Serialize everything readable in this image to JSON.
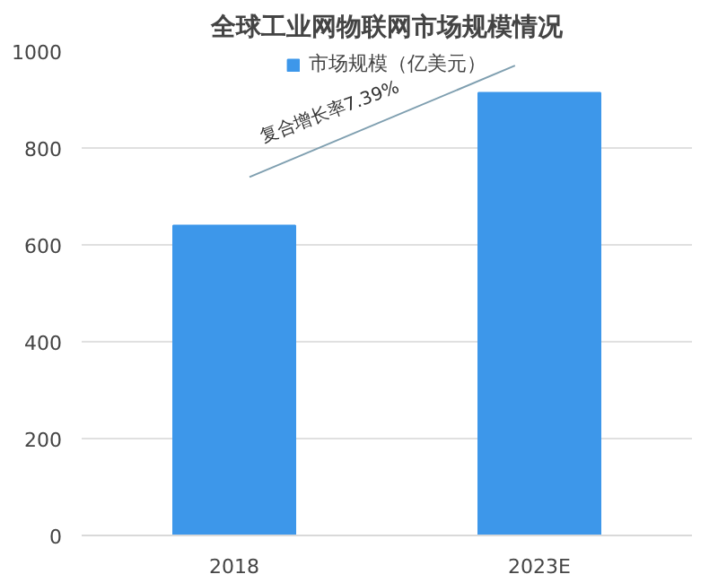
{
  "chart_data": {
    "type": "bar",
    "title": "全球工业网物联网市场规模情况",
    "categories": [
      "2018",
      "2023E"
    ],
    "series": [
      {
        "name": "市场规模（亿美元）",
        "color": "#3d97ea",
        "values": [
          640,
          914
        ]
      }
    ],
    "ylim": [
      0,
      1000
    ],
    "yticks": [
      0,
      200,
      400,
      600,
      800,
      1000
    ],
    "grid": "y",
    "legend": "top",
    "annotations": [
      "复合增长率7.39%"
    ]
  }
}
